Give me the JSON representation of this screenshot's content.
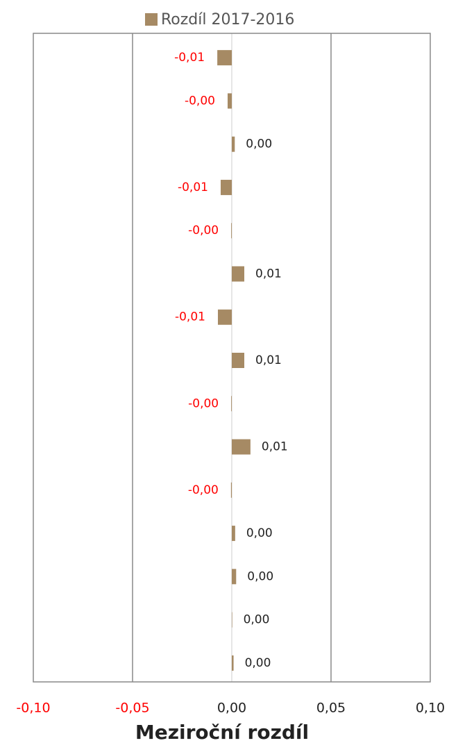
{
  "chart_data": {
    "type": "hbar",
    "xlabel": "Meziroční rozdíl",
    "categories": [
      null,
      null,
      null,
      null,
      null,
      null,
      null,
      null,
      null,
      null,
      null,
      null,
      null,
      null,
      null
    ],
    "series": [
      {
        "name": "Rozdíl 2017-2016",
        "color": "#a68a64",
        "values": [
          -0.0073,
          -0.0021,
          0.0015,
          -0.0056,
          -0.0003,
          0.0063,
          -0.007,
          0.0063,
          -0.0003,
          0.0094,
          -0.0004,
          0.0017,
          0.0022,
          0.0002,
          0.0009
        ],
        "value_labels": [
          "-0,01",
          "-0,00",
          "0,00",
          "-0,01",
          "-0,00",
          "0,01",
          "-0,01",
          "0,01",
          "-0,00",
          "0,01",
          "-0,00",
          "0,00",
          "0,00",
          "0,00",
          "0,00"
        ]
      }
    ],
    "xlim": [
      -0.1,
      0.1
    ],
    "xticks": [
      {
        "value": -0.1,
        "label": "-0,10"
      },
      {
        "value": -0.05,
        "label": "-0,05"
      },
      {
        "value": 0,
        "label": "0,00"
      },
      {
        "value": 0.05,
        "label": "0,05"
      },
      {
        "value": 0.1,
        "label": "0,10"
      }
    ],
    "grid": true,
    "negative_color": "#ff0000",
    "legend": "top"
  }
}
